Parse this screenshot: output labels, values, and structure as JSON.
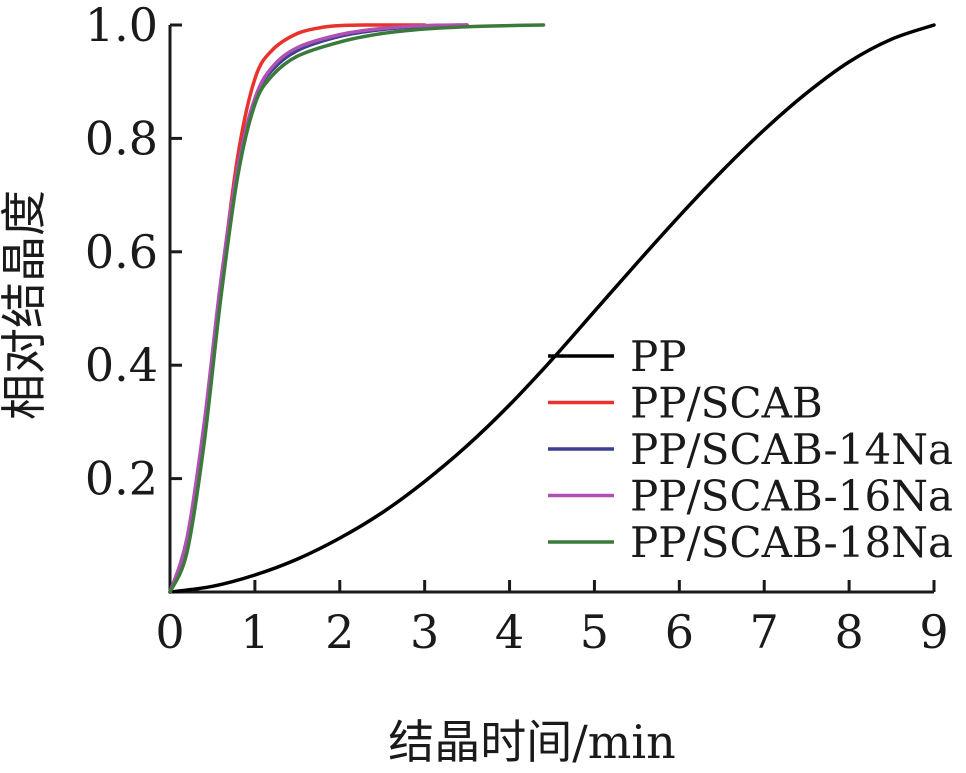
{
  "chart_data": {
    "type": "line",
    "title": "",
    "xlabel": "结晶时间/min",
    "ylabel": "相对结晶度",
    "xlim": [
      0,
      9
    ],
    "ylim": [
      0,
      1.0
    ],
    "xticks": [
      0,
      1,
      2,
      3,
      4,
      5,
      6,
      7,
      8,
      9
    ],
    "xtick_labels": [
      "0",
      "1",
      "2",
      "3",
      "4",
      "5",
      "6",
      "7",
      "8",
      "9"
    ],
    "yticks": [
      0.2,
      0.4,
      0.6,
      0.8,
      1.0
    ],
    "ytick_labels": [
      "0.2",
      "0.4",
      "0.6",
      "0.8",
      "1.0"
    ],
    "grid": false,
    "legend_position": "right",
    "series": [
      {
        "name": "PP",
        "color": "#000000",
        "x": [
          0,
          0.5,
          1.0,
          1.5,
          2.0,
          2.5,
          3.0,
          3.5,
          4.0,
          4.5,
          5.0,
          5.5,
          6.0,
          6.5,
          7.0,
          7.5,
          8.0,
          8.5,
          9.0
        ],
        "y": [
          0,
          0.01,
          0.03,
          0.058,
          0.095,
          0.14,
          0.195,
          0.258,
          0.33,
          0.41,
          0.495,
          0.58,
          0.663,
          0.742,
          0.815,
          0.88,
          0.935,
          0.975,
          1.0
        ]
      },
      {
        "name": "PP/SCAB",
        "color": "#e8322b",
        "x": [
          0,
          0.2,
          0.4,
          0.6,
          0.8,
          1.0,
          1.2,
          1.5,
          1.8,
          2.0,
          2.3,
          2.7,
          3.0
        ],
        "y": [
          0,
          0.08,
          0.27,
          0.54,
          0.77,
          0.905,
          0.955,
          0.985,
          0.996,
          0.999,
          1.0,
          1.0,
          1.0
        ]
      },
      {
        "name": "PP/SCAB-14Na",
        "color": "#3a3f8f",
        "x": [
          0,
          0.2,
          0.4,
          0.6,
          0.8,
          1.0,
          1.2,
          1.5,
          2.0,
          2.5,
          3.0,
          3.5
        ],
        "y": [
          0,
          0.085,
          0.28,
          0.54,
          0.75,
          0.87,
          0.92,
          0.955,
          0.98,
          0.992,
          0.998,
          1.0
        ]
      },
      {
        "name": "PP/SCAB-16Na",
        "color": "#b050b5",
        "x": [
          0,
          0.2,
          0.4,
          0.6,
          0.8,
          1.0,
          1.2,
          1.5,
          2.0,
          2.5,
          3.0,
          3.5
        ],
        "y": [
          0,
          0.095,
          0.295,
          0.55,
          0.75,
          0.87,
          0.925,
          0.96,
          0.983,
          0.994,
          0.999,
          1.0
        ]
      },
      {
        "name": "PP/SCAB-18Na",
        "color": "#3b7a3b",
        "x": [
          0,
          0.2,
          0.4,
          0.6,
          0.8,
          1.0,
          1.2,
          1.5,
          2.0,
          2.5,
          3.0,
          3.5,
          4.0,
          4.4
        ],
        "y": [
          0,
          0.07,
          0.26,
          0.52,
          0.735,
          0.86,
          0.91,
          0.945,
          0.97,
          0.985,
          0.993,
          0.997,
          0.999,
          1.0
        ]
      }
    ]
  }
}
